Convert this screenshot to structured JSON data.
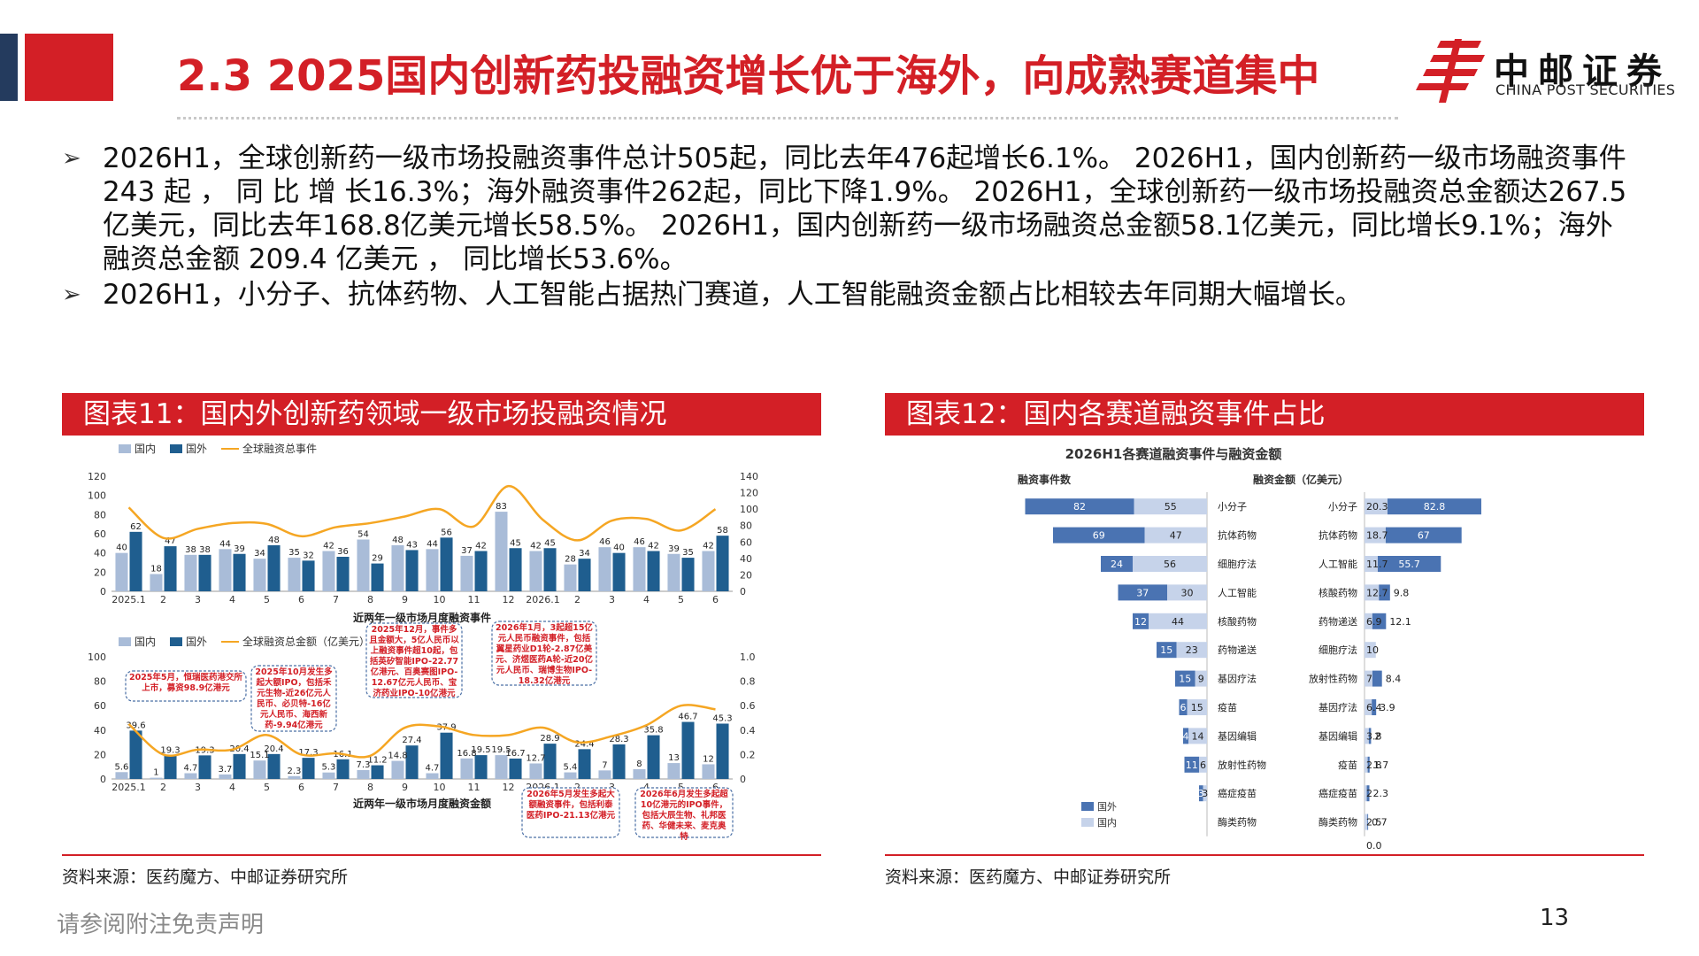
{
  "page": {
    "title": "2.3 2025国内创新药投融资增长优于海外，向成熟赛道集中",
    "logo_cn": "中邮证券",
    "logo_en": "CHINA POST SECURITIES",
    "bullets": [
      "2026H1，全球创新药一级市场投融资事件总计505起，同比去年476起增长6.1%。 2026H1，国内创新药一级市场融资事件 243 起 ， 同 比 增 长16.3%；海外融资事件262起，同比下降1.9%。 2026H1，全球创新药一级市场投融资总金额达267.5亿美元，同比去年168.8亿美元增长58.5%。 2026H1，国内创新药一级市场融资总金额58.1亿美元，同比增长9.1%；海外融资总金额 209.4 亿美元 ，  同比增长53.6%。",
      "2026H1，小分子、抗体药物、人工智能占据热门赛道，人工智能融资金额占比相较去年同期大幅增长。"
    ],
    "panel1_title": "图表11：国内外创新药领域一级市场投融资情况",
    "panel2_title": "图表12：国内各赛道融资事件占比",
    "source1": "资料来源：医药魔方、中邮证券研究所",
    "source2": "资料来源：医药魔方、中邮证券研究所",
    "disclaimer": "请参阅附注免责声明",
    "page_number": "13",
    "colors": {
      "brand_red": "#d31f26",
      "navy": "#243b5e",
      "domestic": "#a9bcd8",
      "overseas": "#1f5e8f",
      "line": "#f5a623",
      "track_dark": "#4a73b2",
      "track_light": "#c6d3ea"
    }
  },
  "chart_data": [
    {
      "type": "bar",
      "title": "近两年一级市场月度融资事件",
      "legend": [
        "国内",
        "国外",
        "全球融资总事件"
      ],
      "categories": [
        "2025.1",
        "2",
        "3",
        "4",
        "5",
        "6",
        "7",
        "8",
        "9",
        "10",
        "11",
        "12",
        "2026.1",
        "2",
        "3",
        "4",
        "5",
        "6"
      ],
      "series": [
        {
          "name": "国内",
          "values": [
            40,
            18,
            38,
            44,
            34,
            35,
            42,
            54,
            48,
            44,
            37,
            83,
            42,
            28,
            46,
            46,
            39,
            42
          ]
        },
        {
          "name": "国外",
          "values": [
            62,
            47,
            38,
            39,
            48,
            32,
            36,
            29,
            43,
            56,
            42,
            45,
            45,
            34,
            40,
            42,
            35,
            58
          ]
        },
        {
          "name": "全球融资总事件",
          "axis": "right",
          "values": [
            102,
            65,
            76,
            83,
            82,
            67,
            78,
            83,
            91,
            100,
            79,
            128,
            87,
            62,
            86,
            88,
            74,
            100
          ]
        }
      ],
      "ylim_left": [
        0,
        120
      ],
      "yticks_left": [
        "0",
        "20",
        "40",
        "60",
        "80",
        "100",
        "120"
      ],
      "ylim_right": [
        0,
        140
      ],
      "yticks_right": [
        "0",
        "20",
        "40",
        "60",
        "80",
        "100",
        "120",
        "140"
      ]
    },
    {
      "type": "bar",
      "title": "近两年一级市场月度融资金额",
      "legend": [
        "国内",
        "国外",
        "全球融资总金额（亿美元）"
      ],
      "categories": [
        "2025.1",
        "2",
        "3",
        "4",
        "5",
        "6",
        "7",
        "8",
        "9",
        "10",
        "11",
        "12",
        "2026.1",
        "2",
        "3",
        "4",
        "5",
        "6"
      ],
      "series": [
        {
          "name": "国内",
          "values": [
            5.6,
            1.0,
            4.7,
            3.7,
            15.1,
            2.3,
            5.3,
            7.3,
            14.8,
            4.7,
            16.8,
            19.5,
            12.7,
            5.4,
            7.0,
            8.0,
            13.0,
            12.0
          ]
        },
        {
          "name": "国外",
          "values": [
            39.6,
            19.3,
            19.3,
            20.4,
            20.4,
            17.3,
            16.1,
            11.2,
            27.4,
            37.9,
            19.5,
            16.7,
            28.9,
            24.4,
            28.3,
            35.8,
            46.7,
            45.3
          ]
        },
        {
          "name": "全球融资总金额",
          "axis": "right",
          "values": [
            0.45,
            0.2,
            0.24,
            0.24,
            0.36,
            0.2,
            0.21,
            0.19,
            0.42,
            0.43,
            0.36,
            0.36,
            0.42,
            0.3,
            0.35,
            0.44,
            0.6,
            0.57
          ]
        }
      ],
      "ylim_left": [
        0,
        100
      ],
      "yticks_left": [
        "0",
        "20",
        "40",
        "60",
        "80",
        "100"
      ],
      "ylim_right": [
        0,
        1.0
      ],
      "yticks_right": [
        "0",
        "0.2",
        "0.4",
        "0.6",
        "0.8",
        "1.0"
      ],
      "annotations": [
        "2025年5月，恒瑞医药港交所上市，募资98.9亿港元",
        "2025年10月发生多起大额IPO，包括禾元生物-近26亿元人民币、必贝特-16亿元人民币、海西新药-9.94亿港元",
        "2025年12月，事件多且金额大，5亿人民币以上融资事件超10起，包括英矽智能IPO-22.77亿港元、百奥赛图IPO-12.67亿元人民币、宝济药业IPO-10亿港元",
        "2026年1月，3起超15亿元人民币融资事件，包括翼星药业D1轮-2.87亿美元、济煜医药A轮-近20亿元人民币、瑞博生物IPO-18.32亿港元",
        "2026年5月发生多起大额融资事件，包括利泰医药IPO-21.13亿港元",
        "2026年6月发生多起超10亿港元的IPO事件，包括大辰生物、礼邦医药、华健未来、麦克奥特"
      ]
    },
    {
      "type": "bar",
      "title": "2026H1各赛道融资事件与融资金额",
      "left_header": "融资事件数",
      "right_header": "融资金额（亿美元）",
      "legend": [
        "国外",
        "国内"
      ],
      "events": {
        "categories": [
          "小分子",
          "抗体药物",
          "细胞疗法",
          "人工智能",
          "核酸药物",
          "药物递送",
          "基因疗法",
          "疫苗",
          "基因编辑",
          "放射性药物",
          "癌症疫苗",
          "酶类药物"
        ],
        "series": [
          {
            "name": "国外",
            "values": [
              82,
              69,
              24,
              37,
              12,
              15,
              15,
              6,
              4,
              11,
              3,
              0
            ]
          },
          {
            "name": "国内",
            "values": [
              55,
              47,
              56,
              30,
              44,
              23,
              9,
              15,
              14,
              6,
              3,
              0
            ]
          }
        ]
      },
      "amounts": {
        "categories": [
          "小分子",
          "抗体药物",
          "人工智能",
          "核酸药物",
          "药物递送",
          "细胞疗法",
          "放射性药物",
          "基因疗法",
          "基因编辑",
          "疫苗",
          "癌症疫苗",
          "酶类药物"
        ],
        "series": [
          {
            "name": "国内",
            "values": [
              20.3,
              18.7,
              11.7,
              12.7,
              6.9,
              10.0,
              7.0,
              6.4,
              3.8,
              2.8,
              2.0,
              2.5
            ]
          },
          {
            "name": "国外",
            "values": [
              82.8,
              67.0,
              55.7,
              9.8,
              12.1,
              0,
              8.4,
              3.9,
              2.0,
              1.7,
              2.3,
              0.7
            ]
          }
        ],
        "extra_labels": [
          "0.0"
        ]
      }
    }
  ]
}
